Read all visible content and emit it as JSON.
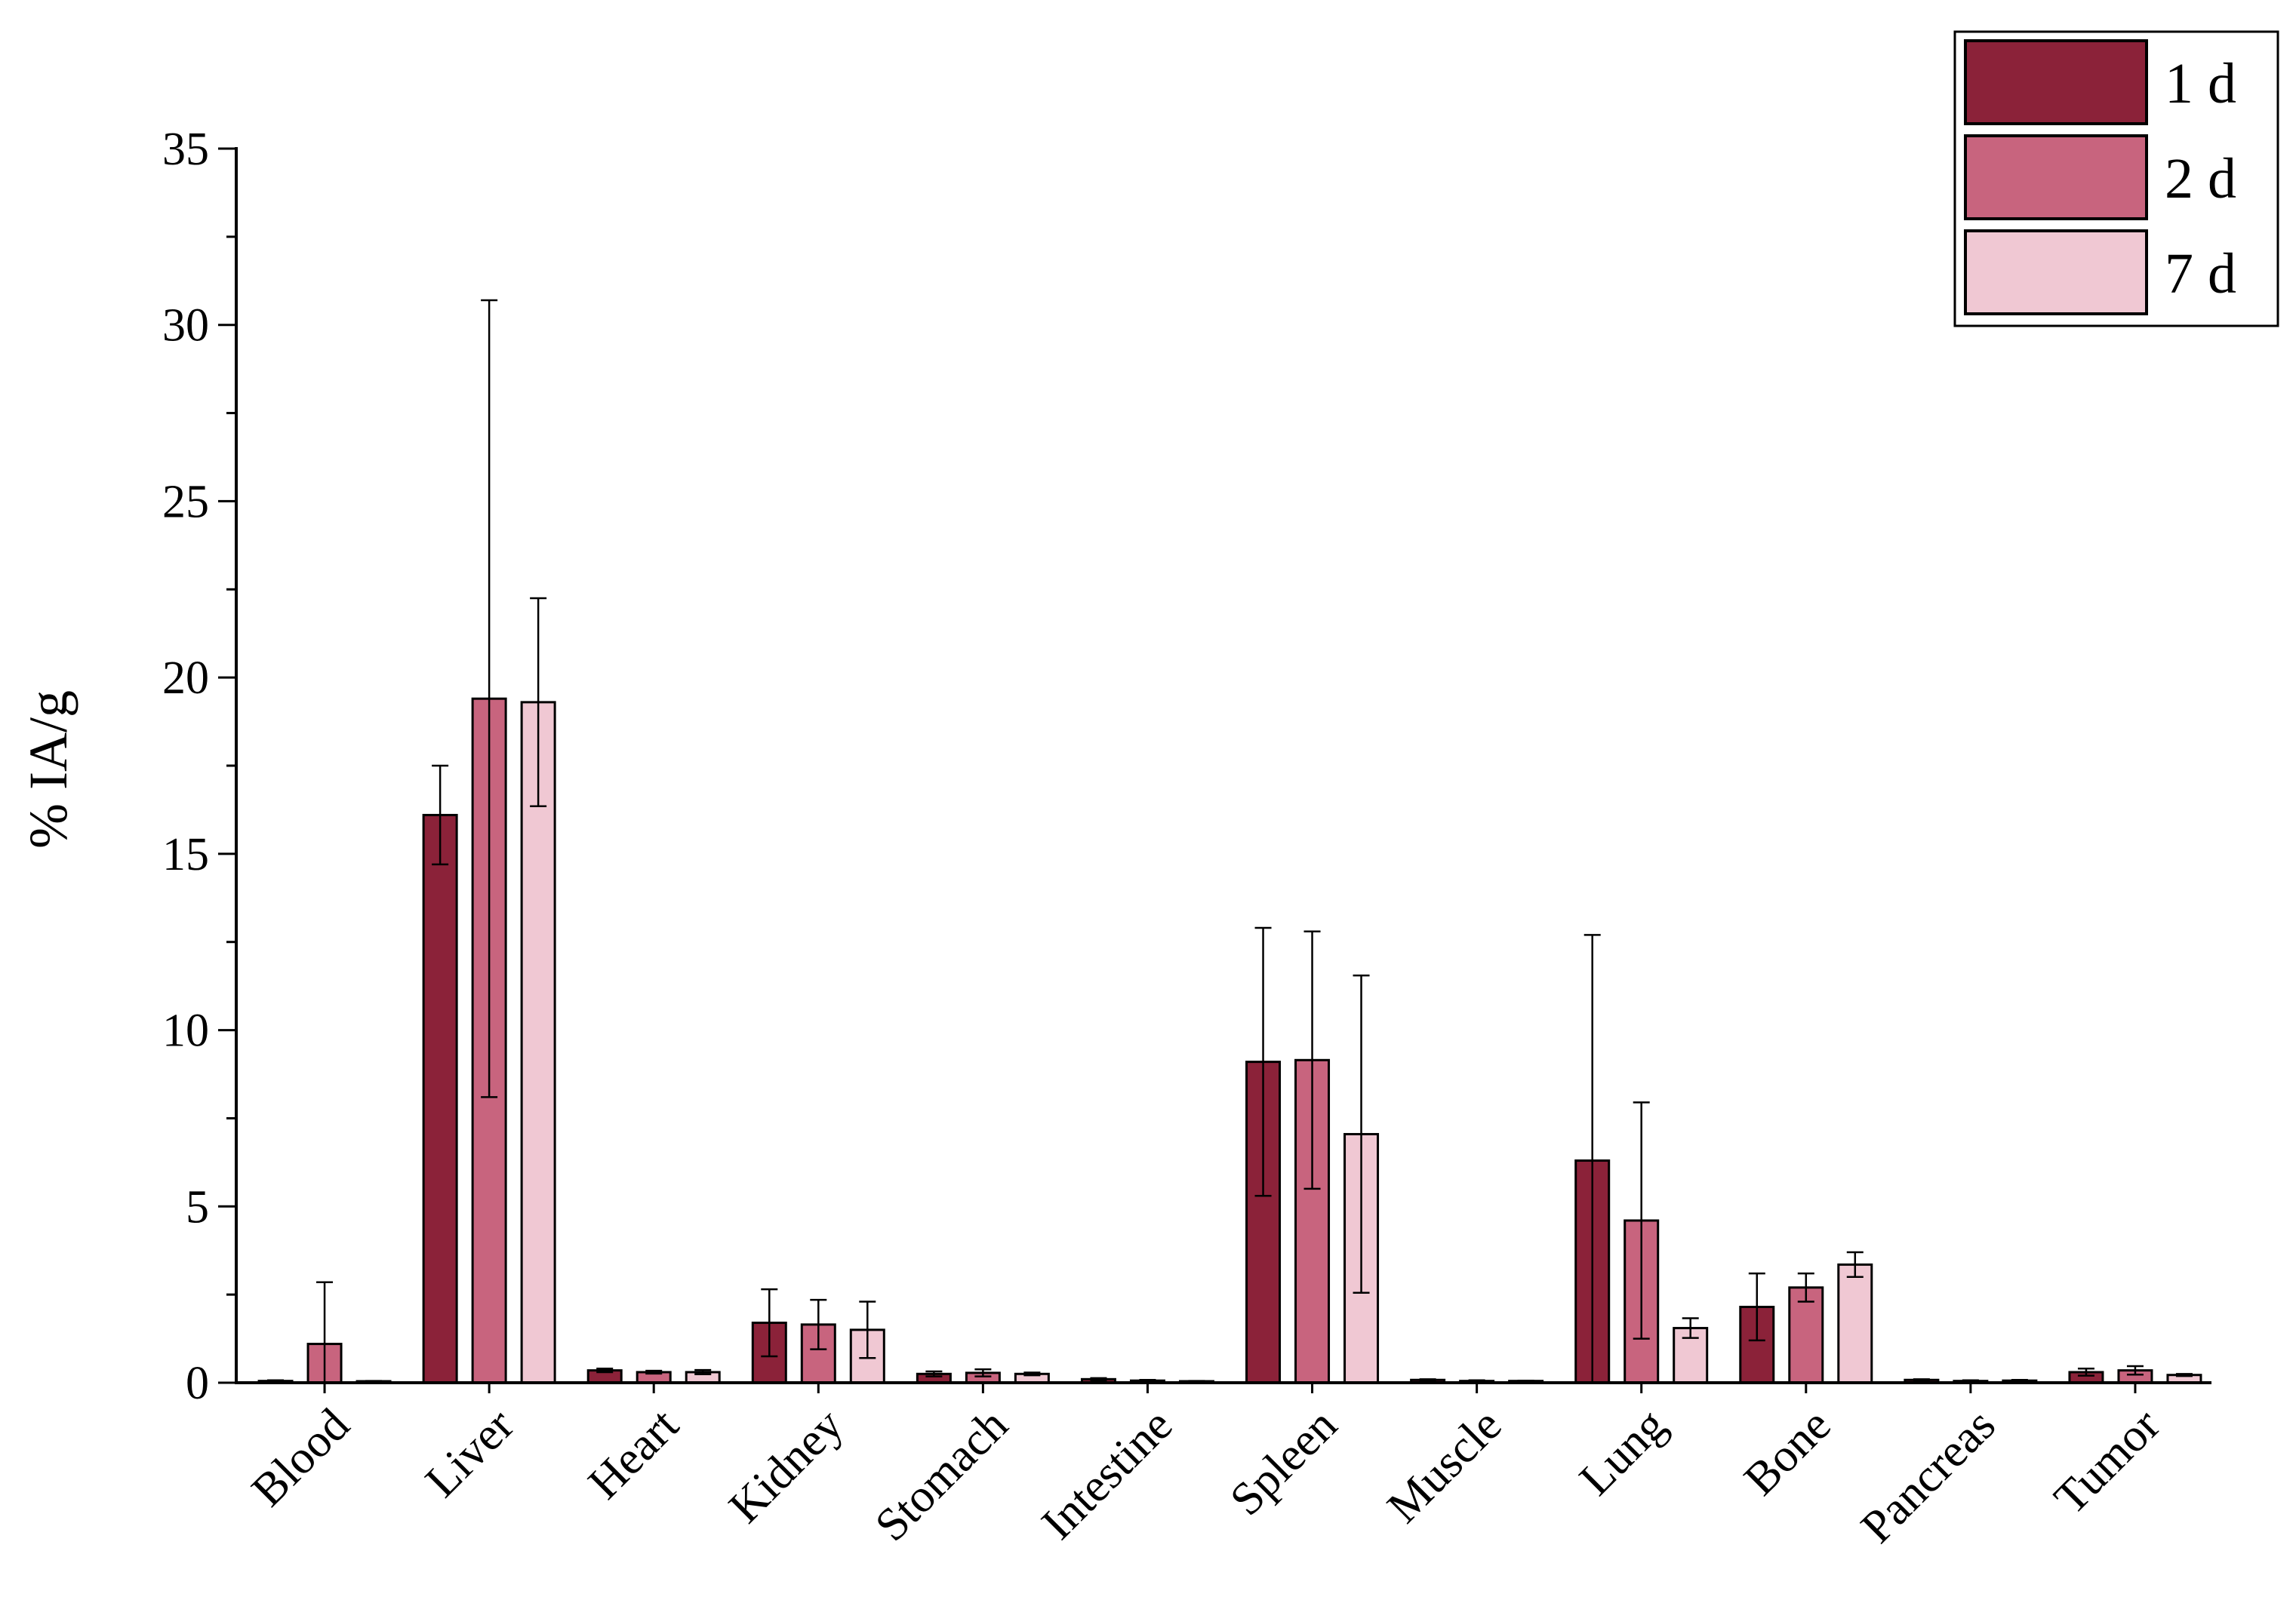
{
  "chart_data": {
    "type": "bar",
    "title": "",
    "xlabel": "",
    "ylabel": "% IA/g",
    "ylim": [
      0,
      35
    ],
    "yticks": [
      0,
      5,
      10,
      15,
      20,
      25,
      30,
      35
    ],
    "grid": false,
    "legend_position": "top-right",
    "categories": [
      "Blood",
      "Liver",
      "Heart",
      "Kidney",
      "Stomach",
      "Intestine",
      "Spleen",
      "Muscle",
      "Lung",
      "Bone",
      "Pancreas",
      "Tumor"
    ],
    "series": [
      {
        "name": "1 d",
        "color": "#8b2239",
        "values": [
          0.05,
          16.1,
          0.35,
          1.7,
          0.25,
          0.1,
          9.1,
          0.08,
          6.3,
          2.15,
          0.08,
          0.3
        ],
        "errors": [
          0.02,
          1.4,
          0.05,
          0.95,
          0.07,
          0.03,
          3.8,
          0.02,
          6.4,
          0.95,
          0.02,
          0.1
        ]
      },
      {
        "name": "2 d",
        "color": "#c8647e",
        "values": [
          1.1,
          19.4,
          0.3,
          1.65,
          0.28,
          0.06,
          9.15,
          0.05,
          4.6,
          2.7,
          0.05,
          0.35
        ],
        "errors": [
          1.75,
          11.3,
          0.04,
          0.7,
          0.1,
          0.02,
          3.65,
          0.02,
          3.35,
          0.4,
          0.02,
          0.12
        ]
      },
      {
        "name": "7 d",
        "color": "#f0c8d3",
        "values": [
          0.04,
          19.3,
          0.3,
          1.5,
          0.25,
          0.04,
          7.05,
          0.05,
          1.55,
          3.35,
          0.06,
          0.22
        ],
        "errors": [
          0.01,
          2.95,
          0.06,
          0.8,
          0.04,
          0.01,
          4.5,
          0.01,
          0.28,
          0.35,
          0.02,
          0.03
        ]
      }
    ]
  }
}
